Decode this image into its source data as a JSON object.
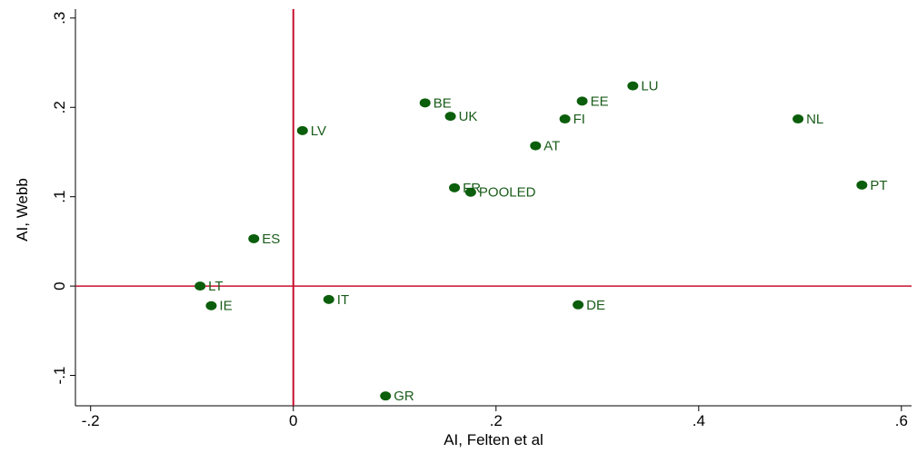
{
  "chart_data": {
    "type": "scatter",
    "x_label": "AI, Felten et al",
    "y_label": "AI, Webb",
    "xlim": [
      -0.215,
      0.61
    ],
    "ylim": [
      -0.134,
      0.31
    ],
    "xticks": [
      {
        "value": -0.2,
        "label": "-.2"
      },
      0,
      {
        "value": 0.2,
        "label": ".2"
      },
      {
        "value": 0.4,
        "label": ".4"
      },
      {
        "value": 0.6,
        "label": ".6"
      }
    ],
    "yticks": [
      {
        "value": -0.1,
        "label": "-.1"
      },
      0,
      {
        "value": 0.1,
        "label": ".1"
      },
      {
        "value": 0.2,
        "label": ".2"
      },
      {
        "value": 0.3,
        "label": ".3"
      }
    ],
    "reference_lines": {
      "x": 0,
      "y": 0,
      "color": "#c8102e"
    },
    "color": "#0b5e0b",
    "labels": [
      "LT",
      "IE",
      "ES",
      "LV",
      "IT",
      "GR",
      "BE",
      "UK",
      "FR",
      "POOLED",
      "AT",
      "FI",
      "EE",
      "DE",
      "LU",
      "NL",
      "PT"
    ],
    "x": [
      -0.092,
      -0.081,
      -0.039,
      0.009,
      0.035,
      0.091,
      0.13,
      0.155,
      0.159,
      0.175,
      0.239,
      0.268,
      0.285,
      0.281,
      0.335,
      0.498,
      0.561
    ],
    "y": [
      0,
      -0.022,
      0.053,
      0.174,
      -0.015,
      -0.123,
      0.205,
      0.19,
      0.11,
      0.105,
      0.157,
      0.187,
      0.207,
      -0.021,
      0.224,
      0.187,
      0.113
    ]
  }
}
